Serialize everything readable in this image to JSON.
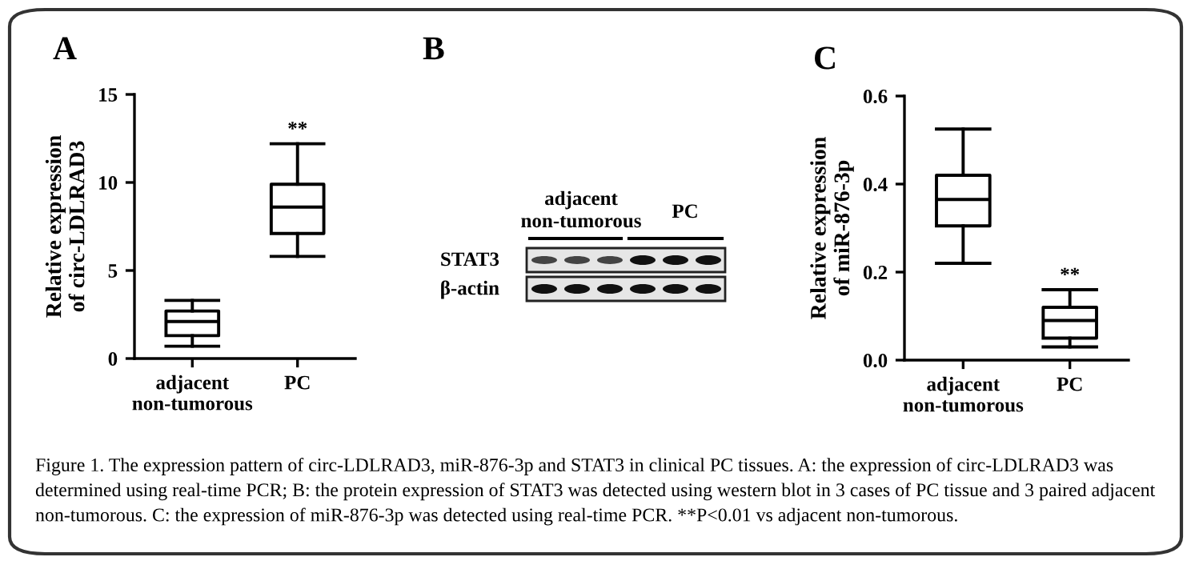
{
  "chart_data": [
    {
      "type": "box",
      "title": "A",
      "ylabel": "Relative expression\nof circ-LDLRAD3",
      "categories": [
        "adjacent\nnon-tumorous",
        "PC"
      ],
      "ylim": [
        0,
        15
      ],
      "yticks": [
        0,
        5,
        10,
        15
      ],
      "grid": false,
      "boxes": [
        {
          "low": 0.7,
          "q1": 1.3,
          "median": 2.1,
          "q3": 2.7,
          "high": 3.3
        },
        {
          "low": 5.8,
          "q1": 7.1,
          "median": 8.6,
          "q3": 9.9,
          "high": 12.2
        }
      ],
      "annotations": [
        {
          "text": "**",
          "x": "PC",
          "y": 12.2
        }
      ]
    },
    {
      "type": "other",
      "title": "B",
      "annotations": [
        "adjacent\nnon-tumorous",
        "PC",
        "STAT3",
        "β-actin"
      ]
    },
    {
      "type": "box",
      "title": "C",
      "ylabel": "Relative expression\nof miR-876-3p",
      "categories": [
        "adjacent\nnon-tumorous",
        "PC"
      ],
      "ylim": [
        0,
        0.6
      ],
      "yticks": [
        {
          "value": 0,
          "label": "0.0"
        },
        {
          "value": 0.2,
          "label": "0.2"
        },
        {
          "value": 0.4,
          "label": "0.4"
        },
        {
          "value": 0.6,
          "label": "0.6"
        }
      ],
      "grid": false,
      "boxes": [
        {
          "low": 0.22,
          "q1": 0.305,
          "median": 0.365,
          "q3": 0.42,
          "high": 0.525
        },
        {
          "low": 0.03,
          "q1": 0.05,
          "median": 0.09,
          "q3": 0.12,
          "high": 0.16
        }
      ],
      "annotations": [
        {
          "text": "**",
          "x": "PC",
          "y": 0.16
        }
      ]
    },
    {
      "type": "other",
      "annotations": [
        "Figure 1. The expression pattern of circ-LDLRAD3, miR-876-3p and STAT3 in clinical PC tissues. A: the expression of circ-LDLRAD3 was determined using real-time PCR; B: the protein expression of STAT3 was detected using western blot in 3 cases of PC tissue and 3 paired adjacent non-tumorous. C: the expression of miR-876-3p was detected using real-time PCR. **P<0.01 vs adjacent non-tumorous."
      ]
    }
  ]
}
